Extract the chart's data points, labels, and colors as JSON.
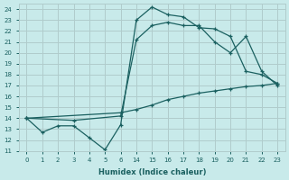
{
  "xlabel": "Humidex (Indice chaleur)",
  "bg_color": "#c8eaea",
  "grid_color": "#b0cccc",
  "line_color": "#1a6060",
  "ylim": [
    11,
    24.5
  ],
  "yticks": [
    11,
    12,
    13,
    14,
    15,
    16,
    17,
    18,
    19,
    20,
    21,
    22,
    23,
    24
  ],
  "xvals": [
    0,
    1,
    2,
    3,
    4,
    5,
    6,
    14,
    15,
    16,
    17,
    18,
    19,
    20,
    21,
    22,
    23
  ],
  "line1_x": [
    0,
    1,
    2,
    3,
    4,
    5,
    6,
    14,
    15,
    16,
    17,
    18,
    19,
    20,
    21,
    22,
    23
  ],
  "line1_y": [
    14.0,
    12.7,
    13.3,
    13.3,
    12.2,
    11.1,
    13.4,
    23.0,
    24.2,
    23.5,
    23.3,
    22.3,
    22.2,
    21.5,
    18.3,
    18.0,
    17.2
  ],
  "line2_x": [
    0,
    3,
    6,
    14,
    15,
    16,
    17,
    18,
    19,
    20,
    21,
    22,
    23
  ],
  "line2_y": [
    14.0,
    13.8,
    14.2,
    21.2,
    22.5,
    22.8,
    22.5,
    22.5,
    21.0,
    20.0,
    21.5,
    18.3,
    17.0
  ],
  "line3_x": [
    0,
    6,
    14,
    15,
    16,
    17,
    18,
    19,
    20,
    21,
    22,
    23
  ],
  "line3_y": [
    14.0,
    14.5,
    14.8,
    15.2,
    15.7,
    16.0,
    16.3,
    16.5,
    16.7,
    16.9,
    17.0,
    17.2
  ]
}
